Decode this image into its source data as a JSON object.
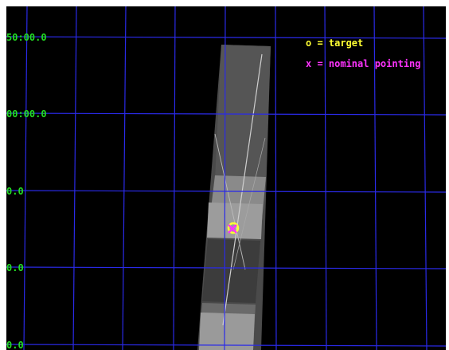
{
  "image": {
    "background": "#000000",
    "grid_color": "#2a2ae8",
    "label_color": "#22dd22"
  },
  "axis_labels": {
    "y": [
      "50:00.0",
      "00:00.0",
      "0.0",
      "0.0",
      "0.0"
    ]
  },
  "legend": {
    "target": {
      "text": "o = target",
      "color": "#ffff33"
    },
    "nominal": {
      "text": "x = nominal pointing",
      "color": "#ff33ff"
    }
  },
  "markers": {
    "target_symbol": "target-circle-icon",
    "nominal_symbol": "nominal-x-icon",
    "target_color": "#ffff33",
    "nominal_color": "#ff33ff"
  }
}
